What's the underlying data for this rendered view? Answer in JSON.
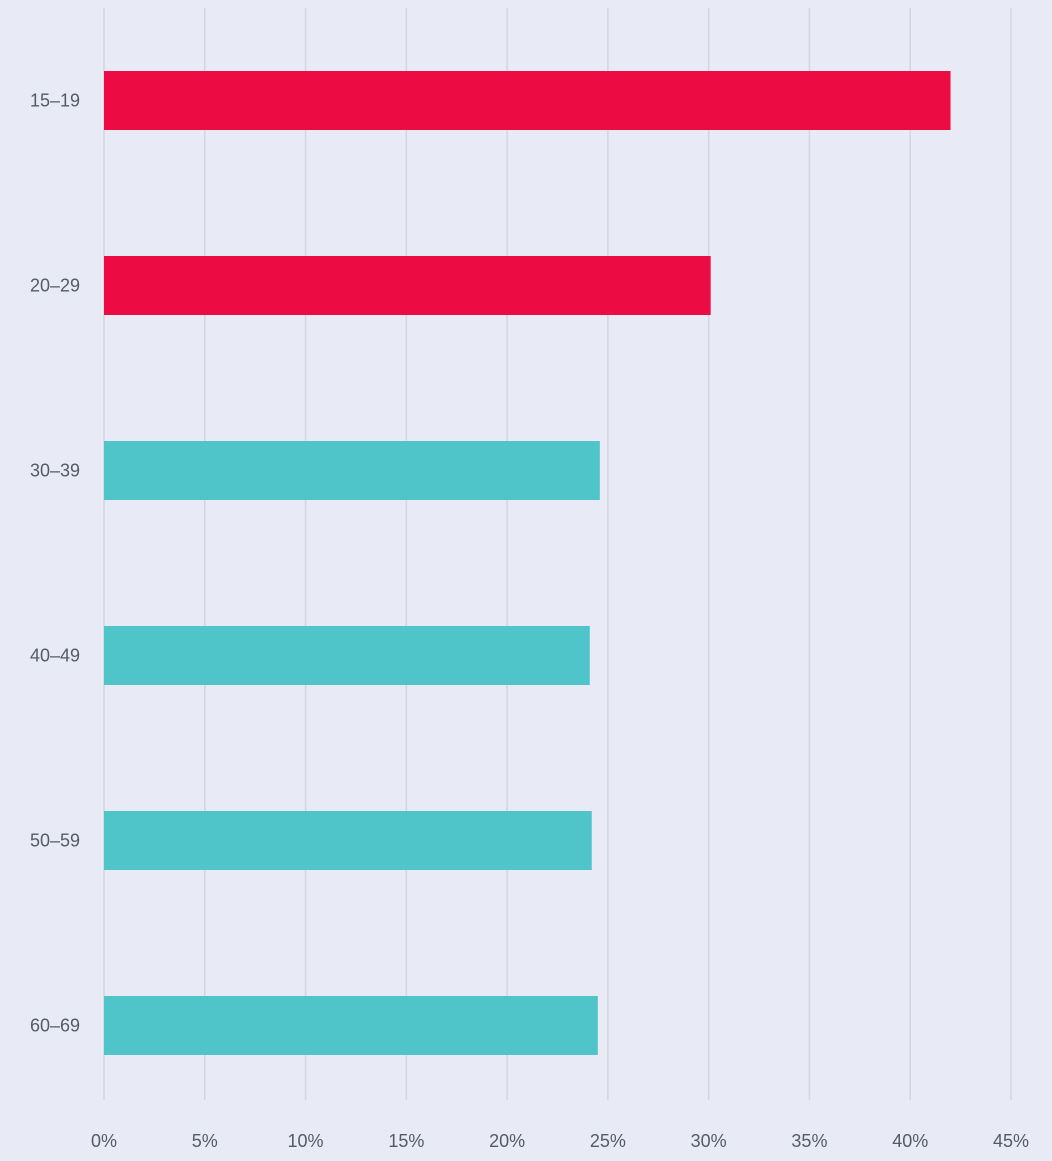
{
  "colors": {
    "background": "#e8ebf5",
    "grid": "#d3d6dc",
    "highlight_bar": "#ec0b43",
    "normal_bar": "#4fc4c9",
    "text": "#555a66"
  },
  "chart_data": {
    "type": "bar",
    "orientation": "horizontal",
    "title": "",
    "xlabel": "",
    "ylabel": "",
    "categories": [
      "15–19",
      "20–29",
      "30–39",
      "40–49",
      "50–59",
      "60–69"
    ],
    "values": [
      42.0,
      30.1,
      24.6,
      24.1,
      24.2,
      24.5
    ],
    "bar_colors": [
      "#ec0b43",
      "#ec0b43",
      "#4fc4c9",
      "#4fc4c9",
      "#4fc4c9",
      "#4fc4c9"
    ],
    "xlim": [
      0,
      45
    ],
    "x_ticks": [
      "0%",
      "5%",
      "10%",
      "15%",
      "20%",
      "25%",
      "30%",
      "35%",
      "40%",
      "45%"
    ],
    "grid": "vertical",
    "legend": "none"
  }
}
